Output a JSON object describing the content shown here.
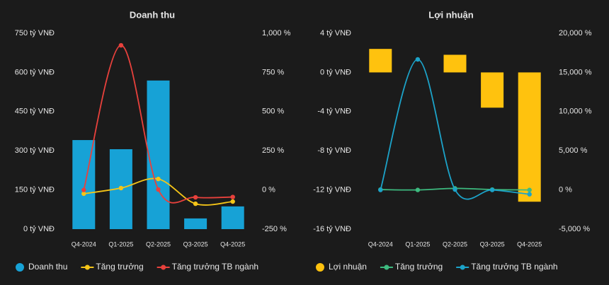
{
  "chart_data": [
    {
      "type": "bar",
      "title": "Doanh thu",
      "categories": [
        "Q4-2024",
        "Q1-2025",
        "Q2-2025",
        "Q3-2025",
        "Q4-2025"
      ],
      "ylim": [
        0,
        750
      ],
      "yticks": [
        {
          "value": 0,
          "label": "0 tỷ VNĐ"
        },
        {
          "value": 150,
          "label": "150 tỷ VNĐ"
        },
        {
          "value": 300,
          "label": "300 tỷ VNĐ"
        },
        {
          "value": 450,
          "label": "450 tỷ VNĐ"
        },
        {
          "value": 600,
          "label": "600 tỷ VNĐ"
        },
        {
          "value": 750,
          "label": "750 tỷ VNĐ"
        }
      ],
      "y2lim": [
        -250,
        1000
      ],
      "y2ticks": [
        {
          "value": -250,
          "label": "-250 %"
        },
        {
          "value": 0,
          "label": "0 %"
        },
        {
          "value": 250,
          "label": "250 %"
        },
        {
          "value": 500,
          "label": "500 %"
        },
        {
          "value": 750,
          "label": "750 %"
        },
        {
          "value": 1000,
          "label": "1,000 %"
        }
      ],
      "series": [
        {
          "name": "Doanh thu",
          "type": "bar",
          "color": "#17a2d6",
          "values": [
            341,
            306,
            569,
            41,
            87
          ]
        },
        {
          "name": "Tăng trưởng",
          "type": "line",
          "axis": "y2",
          "color": "#f5c518",
          "values": [
            -24,
            12,
            70,
            -88,
            -74
          ]
        },
        {
          "name": "Tăng trưởng TB ngành",
          "type": "line",
          "axis": "y2",
          "color": "#e8413c",
          "values": [
            0,
            923,
            3,
            -47,
            -45
          ]
        }
      ]
    },
    {
      "type": "bar",
      "title": "Lợi nhuận",
      "categories": [
        "Q4-2024",
        "Q1-2025",
        "Q2-2025",
        "Q3-2025",
        "Q4-2025"
      ],
      "ylim": [
        -16,
        4
      ],
      "yticks": [
        {
          "value": -16,
          "label": "-16 tỷ VNĐ"
        },
        {
          "value": -12,
          "label": "-12 tỷ VNĐ"
        },
        {
          "value": -8,
          "label": "-8 tỷ VNĐ"
        },
        {
          "value": -4,
          "label": "-4 tỷ VNĐ"
        },
        {
          "value": 0,
          "label": "0 tỷ VNĐ"
        },
        {
          "value": 4,
          "label": "4 tỷ VNĐ"
        }
      ],
      "y2lim": [
        -5000,
        20000
      ],
      "y2ticks": [
        {
          "value": -5000,
          "label": "-5,000 %"
        },
        {
          "value": 0,
          "label": "0 %"
        },
        {
          "value": 5000,
          "label": "5,000 %"
        },
        {
          "value": 10000,
          "label": "10,000 %"
        },
        {
          "value": 15000,
          "label": "15,000 %"
        },
        {
          "value": 20000,
          "label": "20,000 %"
        }
      ],
      "series": [
        {
          "name": "Lợi nhuận",
          "type": "bar",
          "color": "#ffc20e",
          "values": [
            2.4,
            0,
            1.8,
            -3.6,
            -13.2
          ]
        },
        {
          "name": "Tăng trưởng",
          "type": "line",
          "axis": "y2",
          "color": "#3dba7f",
          "values": [
            50,
            0,
            200,
            50,
            0
          ]
        },
        {
          "name": "Tăng trưởng TB ngành",
          "type": "line",
          "axis": "y2",
          "color": "#1ca3c9",
          "values": [
            0,
            16660,
            50,
            0,
            -550
          ]
        }
      ]
    }
  ]
}
